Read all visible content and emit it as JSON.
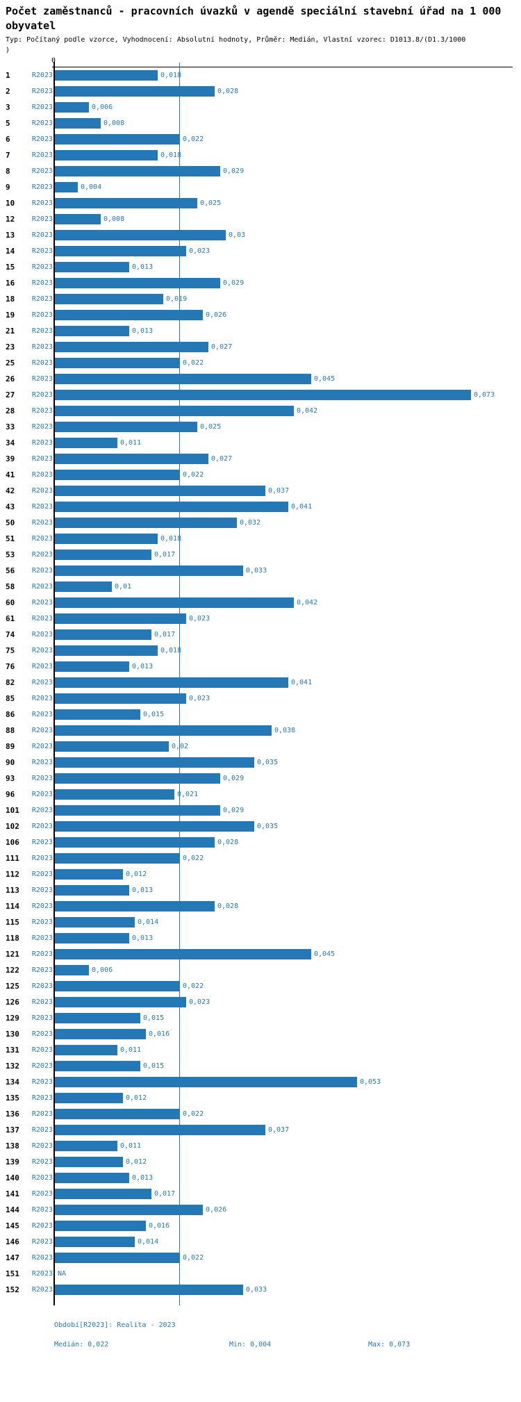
{
  "header": {
    "title": "Počet zaměstnanců - pracovních úvazků v agendě speciální stavební úřad na 1 000 obyvatel",
    "subtitle_line1": "Typ: Počítaný podle vzorce, Vyhodnocení: Absolutní hodnoty, Průměr: Medián, Vlastní vzorec: D1013.8/(D1.3/1000",
    "subtitle_line2": ")"
  },
  "footer": {
    "period": "Období[R2023]: Realita - 2023",
    "median": "Medián: 0,022",
    "min": "Min: 0,004",
    "max": "Max: 0,073"
  },
  "colors": {
    "bar": "#2478b5",
    "label_blue": "#2478b5",
    "axis": "#000000"
  },
  "chart_data": {
    "type": "bar",
    "orientation": "horizontal",
    "title": "Počet zaměstnanců - pracovních úvazků v agendě speciální stavební úřad na 1 000 obyvatel",
    "series_label": "R2023",
    "na_text": "NA",
    "value_format": "decimal-comma",
    "x_axis": {
      "zero_label": "0",
      "min": 0,
      "visible_max": 0.08,
      "gridlines": false
    },
    "median_line_value": 0.022,
    "stats": {
      "median": 0.022,
      "min": 0.004,
      "max": 0.073
    },
    "rows": [
      {
        "id": "1",
        "display": "0,018",
        "value": 0.018
      },
      {
        "id": "2",
        "display": "0,028",
        "value": 0.028
      },
      {
        "id": "3",
        "display": "0,006",
        "value": 0.006
      },
      {
        "id": "5",
        "display": "0,008",
        "value": 0.008
      },
      {
        "id": "6",
        "display": "0,022",
        "value": 0.022
      },
      {
        "id": "7",
        "display": "0,018",
        "value": 0.018
      },
      {
        "id": "8",
        "display": "0,029",
        "value": 0.029
      },
      {
        "id": "9",
        "display": "0,004",
        "value": 0.004
      },
      {
        "id": "10",
        "display": "0,025",
        "value": 0.025
      },
      {
        "id": "12",
        "display": "0,008",
        "value": 0.008
      },
      {
        "id": "13",
        "display": "0,03",
        "value": 0.03
      },
      {
        "id": "14",
        "display": "0,023",
        "value": 0.023
      },
      {
        "id": "15",
        "display": "0,013",
        "value": 0.013
      },
      {
        "id": "16",
        "display": "0,029",
        "value": 0.029
      },
      {
        "id": "18",
        "display": "0,019",
        "value": 0.019
      },
      {
        "id": "19",
        "display": "0,026",
        "value": 0.026
      },
      {
        "id": "21",
        "display": "0,013",
        "value": 0.013
      },
      {
        "id": "23",
        "display": "0,027",
        "value": 0.027
      },
      {
        "id": "25",
        "display": "0,022",
        "value": 0.022
      },
      {
        "id": "26",
        "display": "0,045",
        "value": 0.045
      },
      {
        "id": "27",
        "display": "0,073",
        "value": 0.073
      },
      {
        "id": "28",
        "display": "0,042",
        "value": 0.042
      },
      {
        "id": "33",
        "display": "0,025",
        "value": 0.025
      },
      {
        "id": "34",
        "display": "0,011",
        "value": 0.011
      },
      {
        "id": "39",
        "display": "0,027",
        "value": 0.027
      },
      {
        "id": "41",
        "display": "0,022",
        "value": 0.022
      },
      {
        "id": "42",
        "display": "0,037",
        "value": 0.037
      },
      {
        "id": "43",
        "display": "0,041",
        "value": 0.041
      },
      {
        "id": "50",
        "display": "0,032",
        "value": 0.032
      },
      {
        "id": "51",
        "display": "0,018",
        "value": 0.018
      },
      {
        "id": "53",
        "display": "0,017",
        "value": 0.017
      },
      {
        "id": "56",
        "display": "0,033",
        "value": 0.033
      },
      {
        "id": "58",
        "display": "0,01",
        "value": 0.01
      },
      {
        "id": "60",
        "display": "0,042",
        "value": 0.042
      },
      {
        "id": "61",
        "display": "0,023",
        "value": 0.023
      },
      {
        "id": "74",
        "display": "0,017",
        "value": 0.017
      },
      {
        "id": "75",
        "display": "0,018",
        "value": 0.018
      },
      {
        "id": "76",
        "display": "0,013",
        "value": 0.013
      },
      {
        "id": "82",
        "display": "0,041",
        "value": 0.041
      },
      {
        "id": "85",
        "display": "0,023",
        "value": 0.023
      },
      {
        "id": "86",
        "display": "0,015",
        "value": 0.015
      },
      {
        "id": "88",
        "display": "0,038",
        "value": 0.038
      },
      {
        "id": "89",
        "display": "0,02",
        "value": 0.02
      },
      {
        "id": "90",
        "display": "0,035",
        "value": 0.035
      },
      {
        "id": "93",
        "display": "0,029",
        "value": 0.029
      },
      {
        "id": "96",
        "display": "0,021",
        "value": 0.021
      },
      {
        "id": "101",
        "display": "0,029",
        "value": 0.029
      },
      {
        "id": "102",
        "display": "0,035",
        "value": 0.035
      },
      {
        "id": "106",
        "display": "0,028",
        "value": 0.028
      },
      {
        "id": "111",
        "display": "0,022",
        "value": 0.022
      },
      {
        "id": "112",
        "display": "0,012",
        "value": 0.012
      },
      {
        "id": "113",
        "display": "0,013",
        "value": 0.013
      },
      {
        "id": "114",
        "display": "0,028",
        "value": 0.028
      },
      {
        "id": "115",
        "display": "0,014",
        "value": 0.014
      },
      {
        "id": "118",
        "display": "0,013",
        "value": 0.013
      },
      {
        "id": "121",
        "display": "0,045",
        "value": 0.045
      },
      {
        "id": "122",
        "display": "0,006",
        "value": 0.006
      },
      {
        "id": "125",
        "display": "0,022",
        "value": 0.022
      },
      {
        "id": "126",
        "display": "0,023",
        "value": 0.023
      },
      {
        "id": "129",
        "display": "0,015",
        "value": 0.015
      },
      {
        "id": "130",
        "display": "0,016",
        "value": 0.016
      },
      {
        "id": "131",
        "display": "0,011",
        "value": 0.011
      },
      {
        "id": "132",
        "display": "0,015",
        "value": 0.015
      },
      {
        "id": "134",
        "display": "0,053",
        "value": 0.053
      },
      {
        "id": "135",
        "display": "0,012",
        "value": 0.012
      },
      {
        "id": "136",
        "display": "0,022",
        "value": 0.022
      },
      {
        "id": "137",
        "display": "0,037",
        "value": 0.037
      },
      {
        "id": "138",
        "display": "0,011",
        "value": 0.011
      },
      {
        "id": "139",
        "display": "0,012",
        "value": 0.012
      },
      {
        "id": "140",
        "display": "0,013",
        "value": 0.013
      },
      {
        "id": "141",
        "display": "0,017",
        "value": 0.017
      },
      {
        "id": "144",
        "display": "0,026",
        "value": 0.026
      },
      {
        "id": "145",
        "display": "0,016",
        "value": 0.016
      },
      {
        "id": "146",
        "display": "0,014",
        "value": 0.014
      },
      {
        "id": "147",
        "display": "0,022",
        "value": 0.022
      },
      {
        "id": "151",
        "display": "NA",
        "value": null
      },
      {
        "id": "152",
        "display": "0,033",
        "value": 0.033
      }
    ]
  }
}
